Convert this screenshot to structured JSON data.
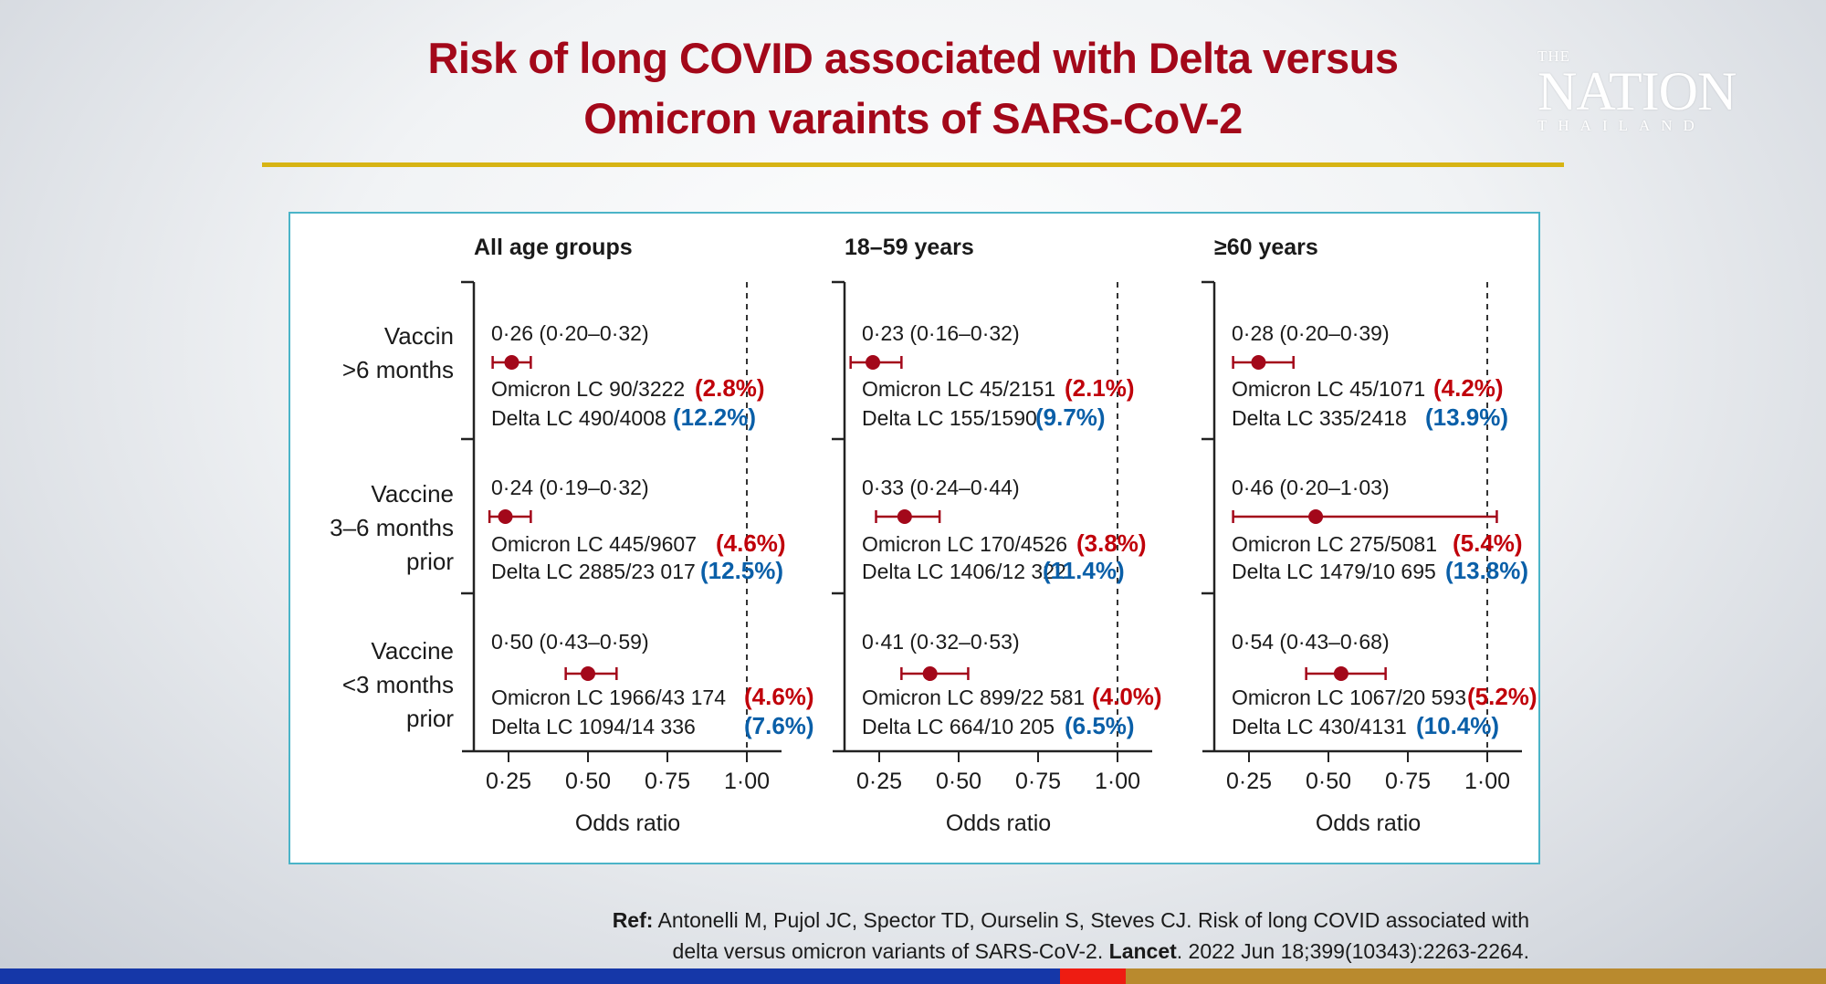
{
  "title": {
    "line1": "Risk of long COVID associated with Delta versus",
    "line2": "Omicron varaints of SARS-CoV-2"
  },
  "logo": {
    "the": "THE",
    "nation": "NATION",
    "thailand": "THAILAND"
  },
  "colors": {
    "title": "#a3081a",
    "omicron": "#c0000a",
    "delta": "#0a5fa8",
    "marker": "#a3081a",
    "frame": "#4bb4c8",
    "divider": "#d7b414"
  },
  "row_labels": [
    [
      "Vaccin",
      ">6 months"
    ],
    [
      "Vaccine",
      "3–6 months",
      "prior"
    ],
    [
      "Vaccine",
      "<3 months",
      "prior"
    ]
  ],
  "chart_data": {
    "type": "forest",
    "xlabel": "Odds ratio",
    "xticks": [
      "0·25",
      "0·50",
      "0·75",
      "1·00"
    ],
    "xtick_values": [
      0.25,
      0.5,
      0.75,
      1.0
    ],
    "reference_line": 1.0,
    "panels": [
      {
        "header": "All age groups",
        "rows": [
          {
            "estimate": "0·26 (0·20–0·32)",
            "or": 0.26,
            "lo": 0.2,
            "hi": 0.32,
            "omicron": "Omicron LC 90/3222",
            "omicron_pct": "(2.8%)",
            "delta": "Delta LC 490/4008",
            "delta_pct": "(12.2%)"
          },
          {
            "estimate": "0·24 (0·19–0·32)",
            "or": 0.24,
            "lo": 0.19,
            "hi": 0.32,
            "omicron": "Omicron LC 445/9607",
            "omicron_pct": "(4.6%)",
            "delta": "Delta LC 2885/23 017",
            "delta_pct": "(12.5%)"
          },
          {
            "estimate": "0·50 (0·43–0·59)",
            "or": 0.5,
            "lo": 0.43,
            "hi": 0.59,
            "omicron": "Omicron LC 1966/43 174",
            "omicron_pct": "(4.6%)",
            "delta": "Delta LC 1094/14 336",
            "delta_pct": "(7.6%)"
          }
        ]
      },
      {
        "header": "18–59 years",
        "rows": [
          {
            "estimate": "0·23 (0·16–0·32)",
            "or": 0.23,
            "lo": 0.16,
            "hi": 0.32,
            "omicron": "Omicron LC 45/2151",
            "omicron_pct": "(2.1%)",
            "delta": "Delta LC 155/1590",
            "delta_pct": "(9.7%)"
          },
          {
            "estimate": "0·33 (0·24–0·44)",
            "or": 0.33,
            "lo": 0.24,
            "hi": 0.44,
            "omicron": "Omicron LC 170/4526",
            "omicron_pct": "(3.8%)",
            "delta": "Delta LC 1406/12 322",
            "delta_pct": "(11.4%)"
          },
          {
            "estimate": "0·41 (0·32–0·53)",
            "or": 0.41,
            "lo": 0.32,
            "hi": 0.53,
            "omicron": "Omicron LC 899/22 581",
            "omicron_pct": "(4.0%)",
            "delta": "Delta LC 664/10 205",
            "delta_pct": "(6.5%)"
          }
        ]
      },
      {
        "header": "≥60 years",
        "rows": [
          {
            "estimate": "0·28 (0·20–0·39)",
            "or": 0.28,
            "lo": 0.2,
            "hi": 0.39,
            "omicron": "Omicron LC 45/1071",
            "omicron_pct": "(4.2%)",
            "delta": "Delta LC 335/2418",
            "delta_pct": "(13.9%)"
          },
          {
            "estimate": "0·46 (0·20–1·03)",
            "or": 0.46,
            "lo": 0.2,
            "hi": 1.03,
            "omicron": "Omicron LC 275/5081",
            "omicron_pct": "(5.4%)",
            "delta": "Delta LC 1479/10 695",
            "delta_pct": "(13.8%)"
          },
          {
            "estimate": "0·54 (0·43–0·68)",
            "or": 0.54,
            "lo": 0.43,
            "hi": 0.68,
            "omicron": "Omicron LC 1067/20 593",
            "omicron_pct": "(5.2%)",
            "delta": "Delta LC 430/4131",
            "delta_pct": "(10.4%)"
          }
        ]
      }
    ]
  },
  "reference": {
    "label": "Ref:",
    "line1": "Antonelli M, Pujol JC, Spector TD, Ourselin S, Steves CJ. Risk of long COVID associated with",
    "line2a": "delta versus omicron variants of SARS-CoV-2.",
    "journal": "Lancet",
    "line2b": ". 2022 Jun 18;399(10343):2263-2264."
  }
}
